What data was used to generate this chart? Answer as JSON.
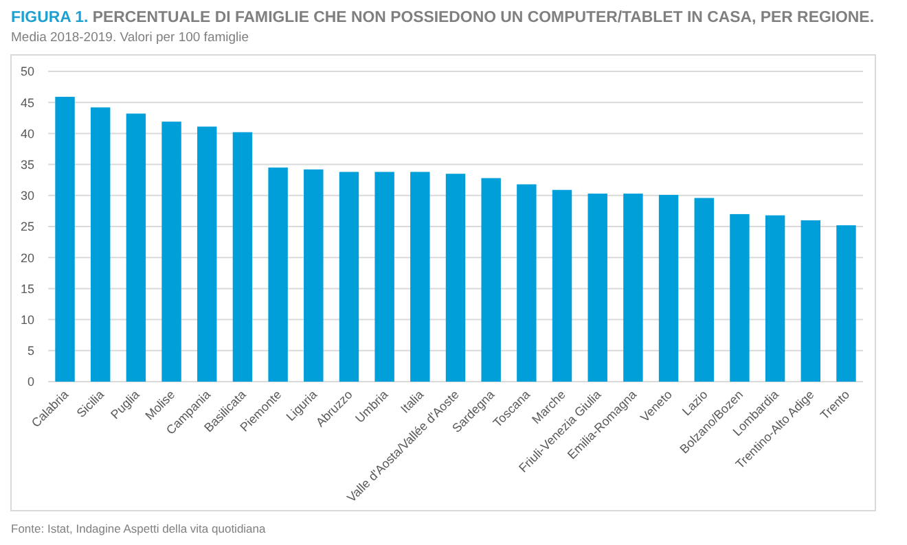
{
  "chart_data": {
    "type": "bar",
    "title": "FIGURA 1. PERCENTUALE DI FAMIGLIE CHE NON POSSIEDONO UN COMPUTER/TABLET IN CASA, PER REGIONE.",
    "subtitle": "Media 2018-2019. Valori per 100 famiglie",
    "categories": [
      "Calabria",
      "Sicilia",
      "Puglia",
      "Molise",
      "Campania",
      "Basilicata",
      "Piemonte",
      "Liguria",
      "Abruzzo",
      "Umbria",
      "Italia",
      "Valle d'Aosta/Vallée d'Aoste",
      "Sardegna",
      "Toscana",
      "Marche",
      "Friuli-Venezia Giulia",
      "Emilia-Romagna",
      "Veneto",
      "Lazio",
      "Bolzano/Bozen",
      "Lombardia",
      "Trentino-Alto Adige",
      "Trento"
    ],
    "values": [
      45.9,
      44.2,
      43.2,
      41.9,
      41.1,
      40.2,
      34.5,
      34.2,
      33.8,
      33.8,
      33.8,
      33.5,
      32.8,
      31.8,
      30.9,
      30.3,
      30.3,
      30.1,
      29.6,
      27.0,
      26.8,
      26.0,
      25.2
    ],
    "color": "#009fd9",
    "ylim": [
      0,
      50
    ],
    "yticks": [
      0,
      5,
      10,
      15,
      20,
      25,
      30,
      35,
      40,
      45,
      50
    ],
    "grid": "y",
    "annotations": [
      "Fonte: Istat, Indagine Aspetti della vita quotidiana"
    ]
  }
}
